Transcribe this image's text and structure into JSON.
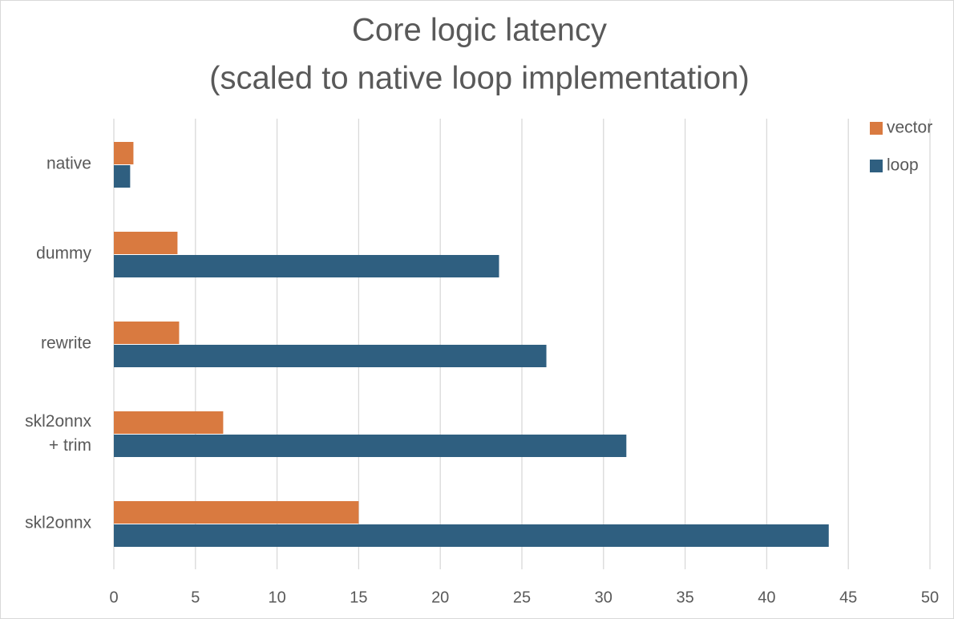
{
  "chart_data": {
    "type": "hbar",
    "title": "Core logic latency",
    "subtitle": "(scaled to native loop implementation)",
    "categories": [
      "native",
      "dummy",
      "rewrite",
      "skl2onnx\n+ trim",
      "skl2onnx"
    ],
    "series": [
      {
        "name": "vector",
        "color": "#d97a40",
        "values": [
          1.2,
          3.9,
          4.0,
          6.7,
          15.0
        ]
      },
      {
        "name": "loop",
        "color": "#2f5f80",
        "values": [
          1,
          23.6,
          26.5,
          31.4,
          43.8
        ]
      }
    ],
    "xlim": [
      0,
      50
    ],
    "xticks": [
      0,
      5,
      10,
      15,
      20,
      25,
      30,
      35,
      40,
      45,
      50
    ],
    "grid": true,
    "legend": "top-right"
  }
}
